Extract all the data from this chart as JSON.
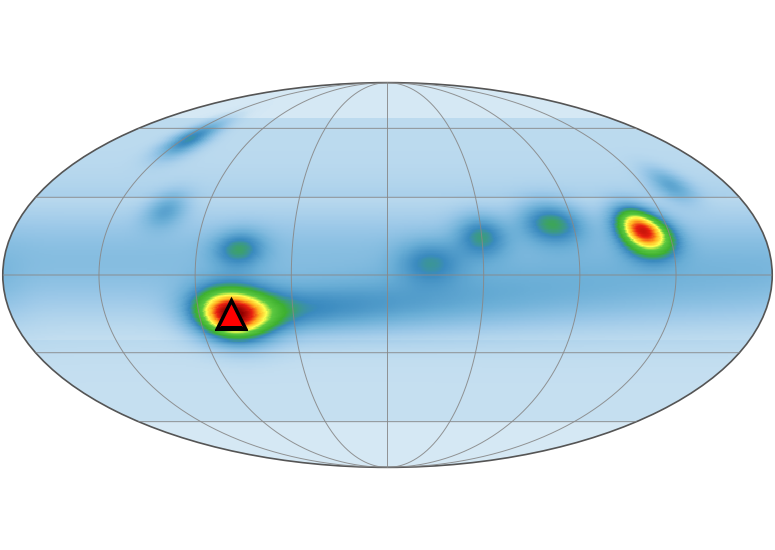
{
  "title": "",
  "projection": "mollweide",
  "background_color": "#ffffff",
  "colors": {
    "white": "#ffffff",
    "light_blue1": "#c8e6f5",
    "light_blue2": "#a8cfe0",
    "blue": "#6aaed6",
    "dark_blue": "#3a7db8",
    "green_dark": "#2e8b20",
    "green": "#4ab528",
    "green_light": "#78c840",
    "yellow": "#ffff60",
    "orange": "#ffa020",
    "red": "#e82010",
    "dark_red": "#a00000"
  },
  "volcano_lon_deg": -75,
  "volcano_lat_deg": -15,
  "grid_color": "#888888",
  "grid_linewidth": 0.7,
  "coastline_color": "#111111",
  "coastline_linewidth": 0.7,
  "figsize": [
    7.75,
    5.5
  ],
  "dpi": 100,
  "hotspots": [
    {
      "lon": -75,
      "lat": -15,
      "strength": 12,
      "lon_scale": 18,
      "lat_scale": 10
    },
    {
      "lon": 125,
      "lat": 15,
      "strength": 10,
      "lon_scale": 12,
      "lat_scale": 8
    },
    {
      "lon": 120,
      "lat": 20,
      "strength": 6,
      "lon_scale": 10,
      "lat_scale": 7
    },
    {
      "lon": 80,
      "lat": 20,
      "strength": 5,
      "lon_scale": 15,
      "lat_scale": 8
    },
    {
      "lon": 45,
      "lat": 15,
      "strength": 4,
      "lon_scale": 12,
      "lat_scale": 8
    },
    {
      "lon": 20,
      "lat": 5,
      "strength": 3,
      "lon_scale": 15,
      "lat_scale": 8
    },
    {
      "lon": -70,
      "lat": 10,
      "strength": 4,
      "lon_scale": 12,
      "lat_scale": 7
    },
    {
      "lon": -110,
      "lat": 25,
      "strength": 3,
      "lon_scale": 10,
      "lat_scale": 7
    },
    {
      "lon": 150,
      "lat": 35,
      "strength": 3,
      "lon_scale": 10,
      "lat_scale": 7
    },
    {
      "lon": -130,
      "lat": 55,
      "strength": 5,
      "lon_scale": 12,
      "lat_scale": 8
    }
  ]
}
